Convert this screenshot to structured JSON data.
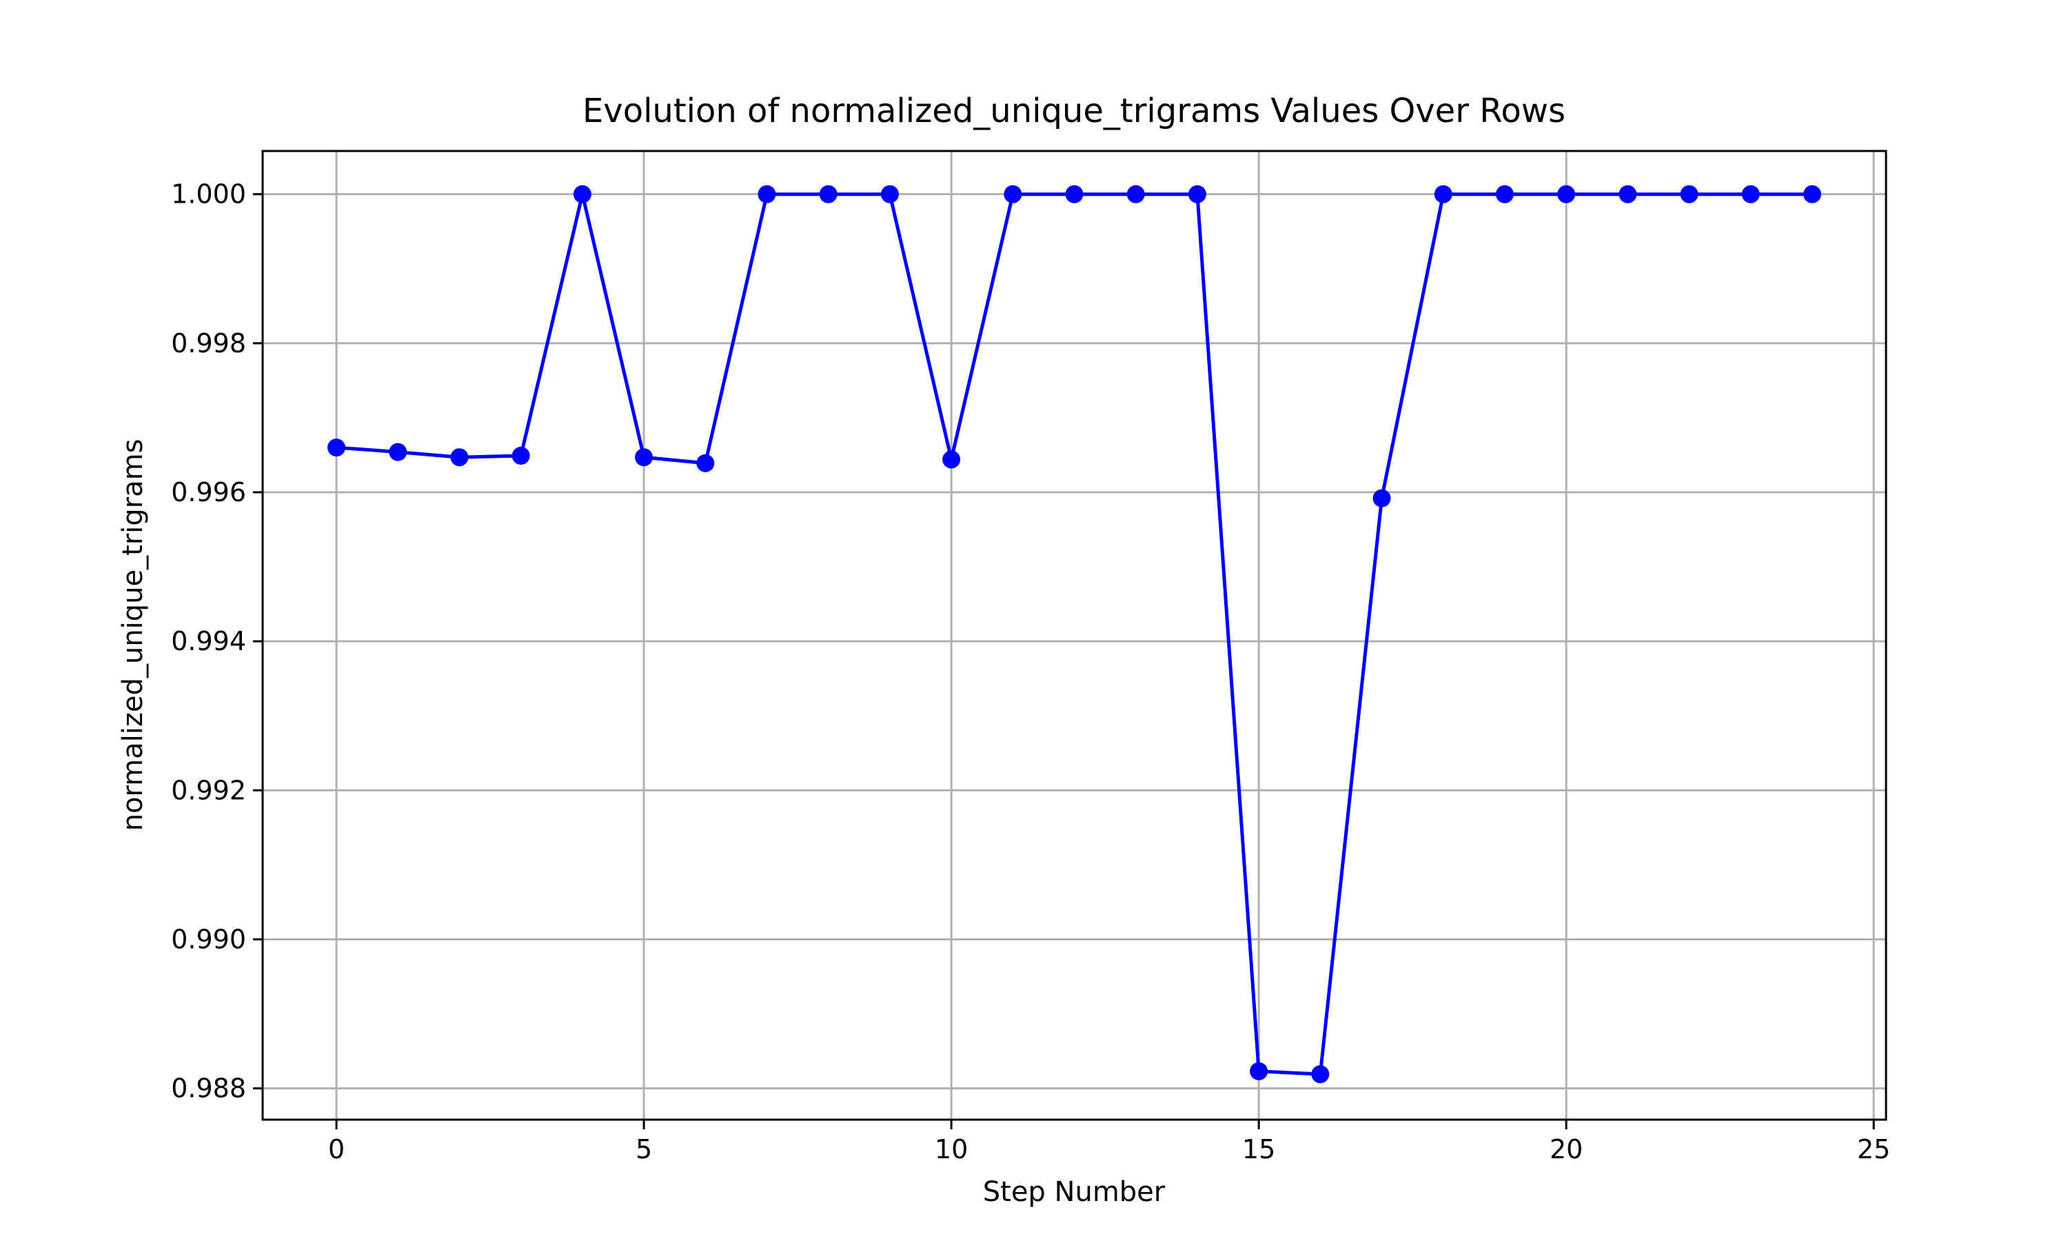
{
  "chart_data": {
    "type": "line",
    "title": "Evolution of normalized_unique_trigrams Values Over Rows",
    "xlabel": "Step Number",
    "ylabel": "normalized_unique_trigrams",
    "xlim": [
      -1.2,
      25.2
    ],
    "ylim": [
      0.98758,
      1.00058
    ],
    "xticks": [
      0,
      5,
      10,
      15,
      20,
      25
    ],
    "xtick_labels": [
      "0",
      "5",
      "10",
      "15",
      "20",
      "25"
    ],
    "yticks": [
      0.988,
      0.99,
      0.992,
      0.994,
      0.996,
      0.998,
      1.0
    ],
    "ytick_labels": [
      "0.988",
      "0.990",
      "0.992",
      "0.994",
      "0.996",
      "0.998",
      "1.000"
    ],
    "grid": true,
    "series": [
      {
        "color": "#0000ff",
        "marker": "circle",
        "x": [
          0,
          1,
          2,
          3,
          4,
          5,
          6,
          7,
          8,
          9,
          10,
          11,
          12,
          13,
          14,
          15,
          16,
          17,
          18,
          19,
          20,
          21,
          22,
          23,
          24
        ],
        "values": [
          0.9966,
          0.99654,
          0.99647,
          0.99649,
          1.0,
          0.99647,
          0.99639,
          1.0,
          1.0,
          1.0,
          0.99644,
          1.0,
          1.0,
          1.0,
          1.0,
          0.98823,
          0.98819,
          0.99592,
          1.0,
          1.0,
          1.0,
          1.0,
          1.0,
          1.0,
          1.0
        ]
      }
    ]
  }
}
